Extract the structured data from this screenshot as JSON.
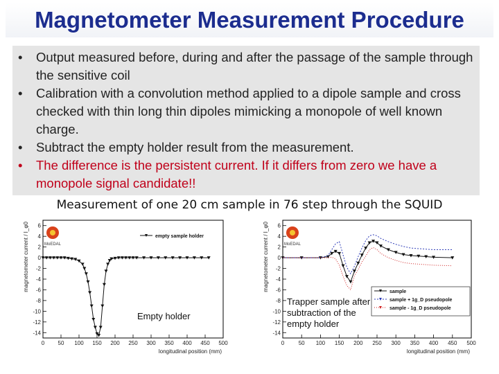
{
  "title": "Magnetometer Measurement Procedure",
  "bullets": [
    {
      "text": "Output measured before, during and after the passage of the sample through the sensitive coil",
      "color": "#222222"
    },
    {
      "text": "Calibration with a convolution method applied to a dipole sample and cross checked with thin long thin dipoles mimicking a monopole of well known charge.",
      "color": "#222222"
    },
    {
      "text": "Subtract the empty holder result from the measurement.",
      "color": "#222222"
    },
    {
      "text": "The difference is the persistent current. If it differs from zero we have a monopole signal candidate!!",
      "color": "#c0001a"
    }
  ],
  "bullet_symbol": "•",
  "caption": "Measurement of one 20 cm sample in 76 step through the SQUID",
  "logo_text": "MoEDAL",
  "chart_data": [
    {
      "type": "scatter",
      "ylabel": "magnetometer current / I_φ0",
      "xlabel": "longitudinal position (mm)",
      "xlim": [
        0,
        500
      ],
      "ylim": [
        -15,
        7
      ],
      "xticks": [
        "0",
        "50",
        "100",
        "150",
        "200",
        "250",
        "300",
        "350",
        "400",
        "450",
        "500"
      ],
      "yticks": [
        "6",
        "4",
        "2",
        "0",
        "-2",
        "-4",
        "-6",
        "-8",
        "-10",
        "-12",
        "-14"
      ],
      "legend": [
        "empty sample holder"
      ],
      "annotation": "Empty holder",
      "series": [
        {
          "name": "empty sample holder",
          "x": [
            0,
            10,
            20,
            30,
            40,
            50,
            60,
            70,
            80,
            90,
            100,
            110,
            115,
            120,
            125,
            130,
            135,
            140,
            145,
            150,
            155,
            160,
            165,
            170,
            175,
            180,
            185,
            190,
            200,
            210,
            220,
            230,
            240,
            250,
            260,
            280,
            300,
            320,
            340,
            360,
            380,
            400,
            420,
            440,
            460
          ],
          "y": [
            0,
            0,
            0,
            0,
            0,
            0,
            0,
            -0.1,
            -0.2,
            -0.3,
            -0.6,
            -1.2,
            -2,
            -3,
            -4.5,
            -6.5,
            -9,
            -11.5,
            -13,
            -14.2,
            -14.5,
            -13,
            -9,
            -5,
            -2.5,
            -1.2,
            -0.5,
            -0.2,
            -0.1,
            0,
            0,
            0,
            0,
            0,
            0,
            0,
            0,
            0,
            0,
            0,
            0,
            0,
            0,
            0,
            0
          ]
        }
      ]
    },
    {
      "type": "line",
      "ylabel": "magnetometer current / I_φ0",
      "xlabel": "longitudinal position (mm)",
      "xlim": [
        0,
        500
      ],
      "ylim": [
        -15,
        7
      ],
      "xticks": [
        "0",
        "50",
        "100",
        "150",
        "200",
        "250",
        "300",
        "350",
        "400",
        "450",
        "500"
      ],
      "yticks": [
        "6",
        "4",
        "2",
        "0",
        "-2",
        "-4",
        "-6",
        "-8",
        "-10",
        "-12",
        "-14"
      ],
      "legend": [
        "sample",
        "sample + 1g_D pseudopole",
        "sample - 1g_D pseudopole"
      ],
      "annotation": "Trapper sample after subtraction of the empty holder",
      "series": [
        {
          "name": "sample",
          "x": [
            0,
            50,
            100,
            120,
            130,
            140,
            150,
            160,
            170,
            180,
            190,
            200,
            210,
            220,
            230,
            240,
            250,
            260,
            280,
            300,
            320,
            340,
            360,
            380,
            400,
            450
          ],
          "y": [
            0,
            0,
            0,
            0.2,
            0.8,
            1.2,
            0.8,
            -1.5,
            -3.5,
            -4.5,
            -2.5,
            -1,
            0.5,
            1.8,
            2.8,
            3.1,
            2.8,
            2.2,
            1.5,
            1,
            0.6,
            0.4,
            0.3,
            0.2,
            0.1,
            0
          ]
        },
        {
          "name": "sample + 1g_D pseudopole",
          "x": [
            0,
            50,
            100,
            120,
            130,
            140,
            150,
            160,
            170,
            180,
            190,
            200,
            210,
            220,
            230,
            240,
            250,
            260,
            280,
            300,
            320,
            340,
            360,
            380,
            400,
            450
          ],
          "y": [
            0,
            0,
            0,
            0.4,
            1.5,
            2.6,
            3,
            0.5,
            -1.8,
            -3,
            -1.6,
            0.2,
            1.8,
            3.2,
            4.1,
            4.3,
            4.1,
            3.6,
            3,
            2.5,
            2.1,
            1.8,
            1.7,
            1.6,
            1.5,
            1.5
          ]
        },
        {
          "name": "sample - 1g_D pseudopole",
          "x": [
            0,
            50,
            100,
            120,
            130,
            140,
            150,
            160,
            170,
            180,
            190,
            200,
            210,
            220,
            230,
            240,
            250,
            260,
            280,
            300,
            320,
            340,
            360,
            380,
            400,
            450
          ],
          "y": [
            0,
            0,
            0,
            0,
            0.1,
            -0.2,
            -1.4,
            -3.5,
            -5.2,
            -6,
            -3.4,
            -2.2,
            -0.8,
            0.3,
            1.5,
            1.9,
            1.5,
            0.8,
            0,
            -0.5,
            -0.9,
            -1.1,
            -1.2,
            -1.3,
            -1.4,
            -1.5
          ]
        }
      ]
    }
  ],
  "colors": {
    "title": "#1c2d8f",
    "panel_bg": "#e5e5e5",
    "sample": "#111111",
    "plus": "#2f3db8",
    "minus": "#d02020"
  }
}
